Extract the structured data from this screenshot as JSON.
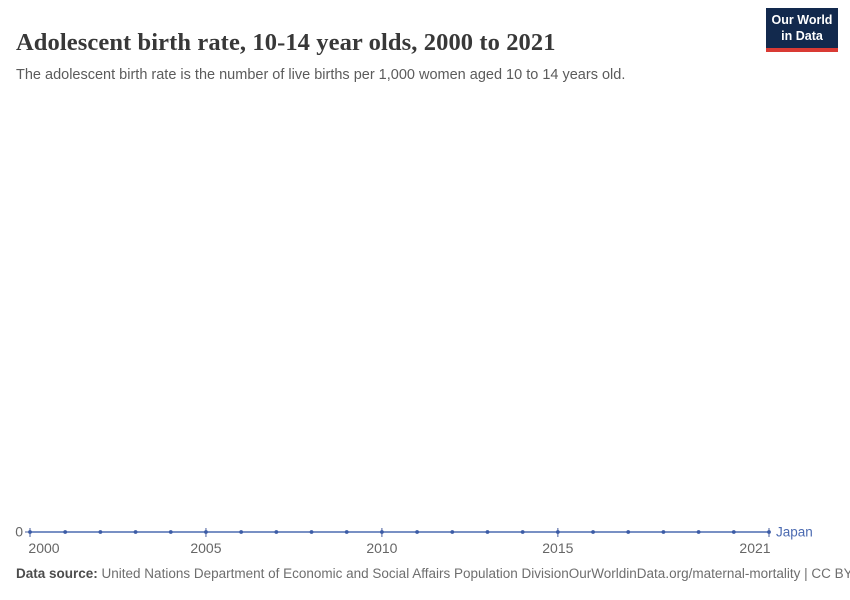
{
  "header": {
    "title": "Adolescent birth rate, 10-14 year olds, 2000 to 2021",
    "subtitle": "The adolescent birth rate is the number of live births per 1,000 women aged 10 to 14 years old."
  },
  "logo": {
    "line1": "Our World",
    "line2": "in Data",
    "background_color": "#12294d",
    "bar_color": "#d93a34"
  },
  "chart_data": {
    "type": "line",
    "title": "Adolescent birth rate, 10-14 year olds, 2000 to 2021",
    "xlabel": "",
    "ylabel": "",
    "xlim": [
      2000,
      2021
    ],
    "ylim": [
      0,
      0
    ],
    "grid": false,
    "legend_position": "end-of-line-label",
    "x": [
      2000,
      2001,
      2002,
      2003,
      2004,
      2005,
      2006,
      2007,
      2008,
      2009,
      2010,
      2011,
      2012,
      2013,
      2014,
      2015,
      2016,
      2017,
      2018,
      2019,
      2020,
      2021
    ],
    "series": [
      {
        "name": "Japan",
        "color": "#4c6bb1",
        "marker_color": "#3c5ca6",
        "values": [
          0,
          0,
          0,
          0,
          0,
          0,
          0,
          0,
          0,
          0,
          0,
          0,
          0,
          0,
          0,
          0,
          0,
          0,
          0,
          0,
          0,
          0
        ]
      }
    ],
    "x_tick_years": [
      2000,
      2005,
      2010,
      2015,
      2021
    ],
    "x_tick_labels": [
      "2000",
      "2005",
      "2010",
      "2015",
      "2021"
    ],
    "y_tick_values": [
      0
    ],
    "y_tick_labels": [
      "0"
    ],
    "tick_color": "#4a5f9e",
    "axis_label_color": "#666666"
  },
  "footer": {
    "source_label": "Data source:",
    "source_text": " United Nations Department of Economic and Social Affairs Population Division",
    "citation": "OurWorldinData.org/maternal-mortality | CC BY"
  }
}
